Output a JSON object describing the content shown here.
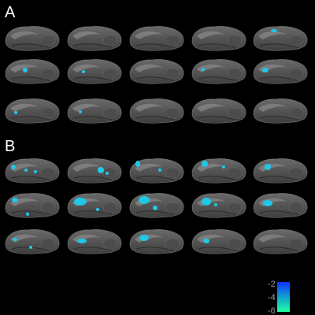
{
  "panels": [
    {
      "label": "A"
    },
    {
      "label": "B"
    }
  ],
  "colorbar": {
    "ticks": [
      "-2",
      "-4",
      "-6"
    ]
  }
}
